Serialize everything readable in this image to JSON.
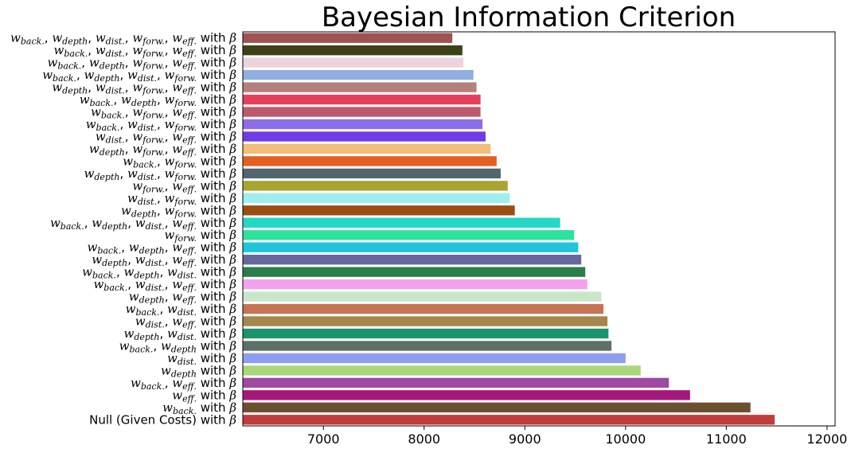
{
  "chart_data": {
    "type": "bar",
    "orientation": "horizontal",
    "title": "Bayesian Information Criterion",
    "xlabel": "",
    "ylabel": "",
    "xlim": [
      6200,
      12080
    ],
    "xticks": [
      7000,
      8000,
      9000,
      10000,
      11000,
      12000
    ],
    "grid": false,
    "legend": "none",
    "label_suffix": "with β",
    "categories": [
      {
        "terms": [
          "back.",
          "depth",
          "dist.",
          "forw.",
          "eff."
        ],
        "value": 8280,
        "color": "#a05252"
      },
      {
        "terms": [
          "back.",
          "dist.",
          "forw.",
          "eff."
        ],
        "value": 8380,
        "color": "#3d4216"
      },
      {
        "terms": [
          "back.",
          "depth",
          "forw.",
          "eff."
        ],
        "value": 8390,
        "color": "#ecd4de"
      },
      {
        "terms": [
          "back.",
          "depth",
          "dist.",
          "forw."
        ],
        "value": 8490,
        "color": "#92ade2"
      },
      {
        "terms": [
          "depth",
          "dist.",
          "forw.",
          "eff."
        ],
        "value": 8520,
        "color": "#b5807b"
      },
      {
        "terms": [
          "back.",
          "depth",
          "forw."
        ],
        "value": 8560,
        "color": "#e63f5c"
      },
      {
        "terms": [
          "back.",
          "forw.",
          "eff."
        ],
        "value": 8560,
        "color": "#be5a6e"
      },
      {
        "terms": [
          "back.",
          "dist.",
          "forw."
        ],
        "value": 8580,
        "color": "#8c6ee8"
      },
      {
        "terms": [
          "dist.",
          "forw.",
          "eff."
        ],
        "value": 8610,
        "color": "#6f3ce8"
      },
      {
        "terms": [
          "depth",
          "forw.",
          "eff."
        ],
        "value": 8660,
        "color": "#f2be78"
      },
      {
        "terms": [
          "back.",
          "forw."
        ],
        "value": 8720,
        "color": "#e35f22"
      },
      {
        "terms": [
          "depth",
          "dist.",
          "forw."
        ],
        "value": 8760,
        "color": "#506670"
      },
      {
        "terms": [
          "forw.",
          "eff."
        ],
        "value": 8830,
        "color": "#aaa533"
      },
      {
        "terms": [
          "dist.",
          "forw."
        ],
        "value": 8850,
        "color": "#9ef0ee"
      },
      {
        "terms": [
          "depth",
          "forw."
        ],
        "value": 8900,
        "color": "#9a4e12"
      },
      {
        "terms": [
          "back.",
          "depth",
          "dist.",
          "eff."
        ],
        "value": 9350,
        "color": "#22d8c6"
      },
      {
        "terms": [
          "forw."
        ],
        "value": 9490,
        "color": "#2ee39e"
      },
      {
        "terms": [
          "back.",
          "depth",
          "eff."
        ],
        "value": 9530,
        "color": "#1ec6dc"
      },
      {
        "terms": [
          "depth",
          "dist.",
          "eff."
        ],
        "value": 9560,
        "color": "#65689a"
      },
      {
        "terms": [
          "back.",
          "depth",
          "dist."
        ],
        "value": 9600,
        "color": "#2a7e4a"
      },
      {
        "terms": [
          "back.",
          "dist.",
          "eff."
        ],
        "value": 9620,
        "color": "#f3a2f0"
      },
      {
        "terms": [
          "depth",
          "eff."
        ],
        "value": 9760,
        "color": "#c8e6c8"
      },
      {
        "terms": [
          "back.",
          "dist."
        ],
        "value": 9780,
        "color": "#c87356"
      },
      {
        "terms": [
          "dist.",
          "eff."
        ],
        "value": 9820,
        "color": "#a48749"
      },
      {
        "terms": [
          "depth",
          "dist."
        ],
        "value": 9830,
        "color": "#1a946a"
      },
      {
        "terms": [
          "back.",
          "depth"
        ],
        "value": 9860,
        "color": "#5e6f63"
      },
      {
        "terms": [
          "dist."
        ],
        "value": 10000,
        "color": "#8e9cf4"
      },
      {
        "terms": [
          "depth"
        ],
        "value": 10150,
        "color": "#a8d87c"
      },
      {
        "terms": [
          "back.",
          "eff."
        ],
        "value": 10430,
        "color": "#a048a2"
      },
      {
        "terms": [
          "eff."
        ],
        "value": 10640,
        "color": "#a4187c"
      },
      {
        "terms": [
          "back."
        ],
        "value": 11240,
        "color": "#6b5030"
      },
      {
        "terms": [],
        "null_label": "Null (Given Costs)",
        "value": 11480,
        "color": "#c23c3c"
      }
    ]
  }
}
